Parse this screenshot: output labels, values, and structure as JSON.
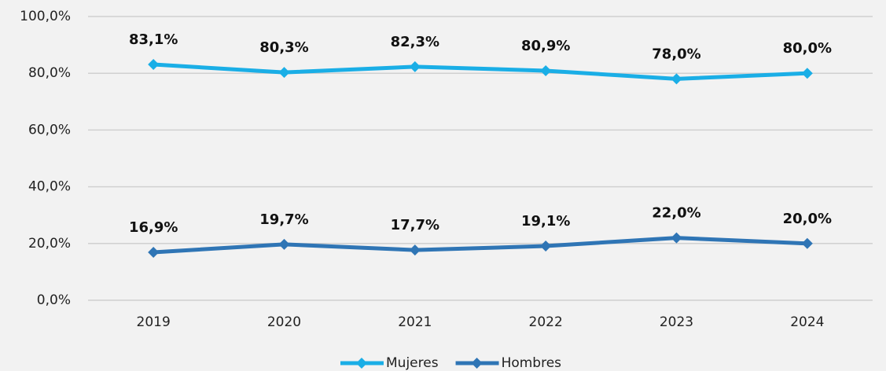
{
  "chart_data": {
    "type": "line",
    "categories": [
      "2019",
      "2020",
      "2021",
      "2022",
      "2023",
      "2024"
    ],
    "series": [
      {
        "name": "Mujeres",
        "color": "#1aaee6",
        "values": [
          83.1,
          80.3,
          82.3,
          80.9,
          78.0,
          80.0
        ],
        "value_labels": [
          "83,1%",
          "80,3%",
          "82,3%",
          "80,9%",
          "78,0%",
          "80,0%"
        ]
      },
      {
        "name": "Hombres",
        "color": "#2f75b5",
        "values": [
          16.9,
          19.7,
          17.7,
          19.1,
          22.0,
          20.0
        ],
        "value_labels": [
          "16,9%",
          "19,7%",
          "17,7%",
          "19,1%",
          "22,0%",
          "20,0%"
        ]
      }
    ],
    "ylim": [
      0,
      100
    ],
    "yticks": [
      {
        "value": 0,
        "label": "0,0%"
      },
      {
        "value": 20,
        "label": "20,0%"
      },
      {
        "value": 40,
        "label": "40,0%"
      },
      {
        "value": 60,
        "label": "60,0%"
      },
      {
        "value": 80,
        "label": "80,0%"
      },
      {
        "value": 100,
        "label": "100,0%"
      }
    ],
    "grid": true,
    "legend": "bottom"
  }
}
